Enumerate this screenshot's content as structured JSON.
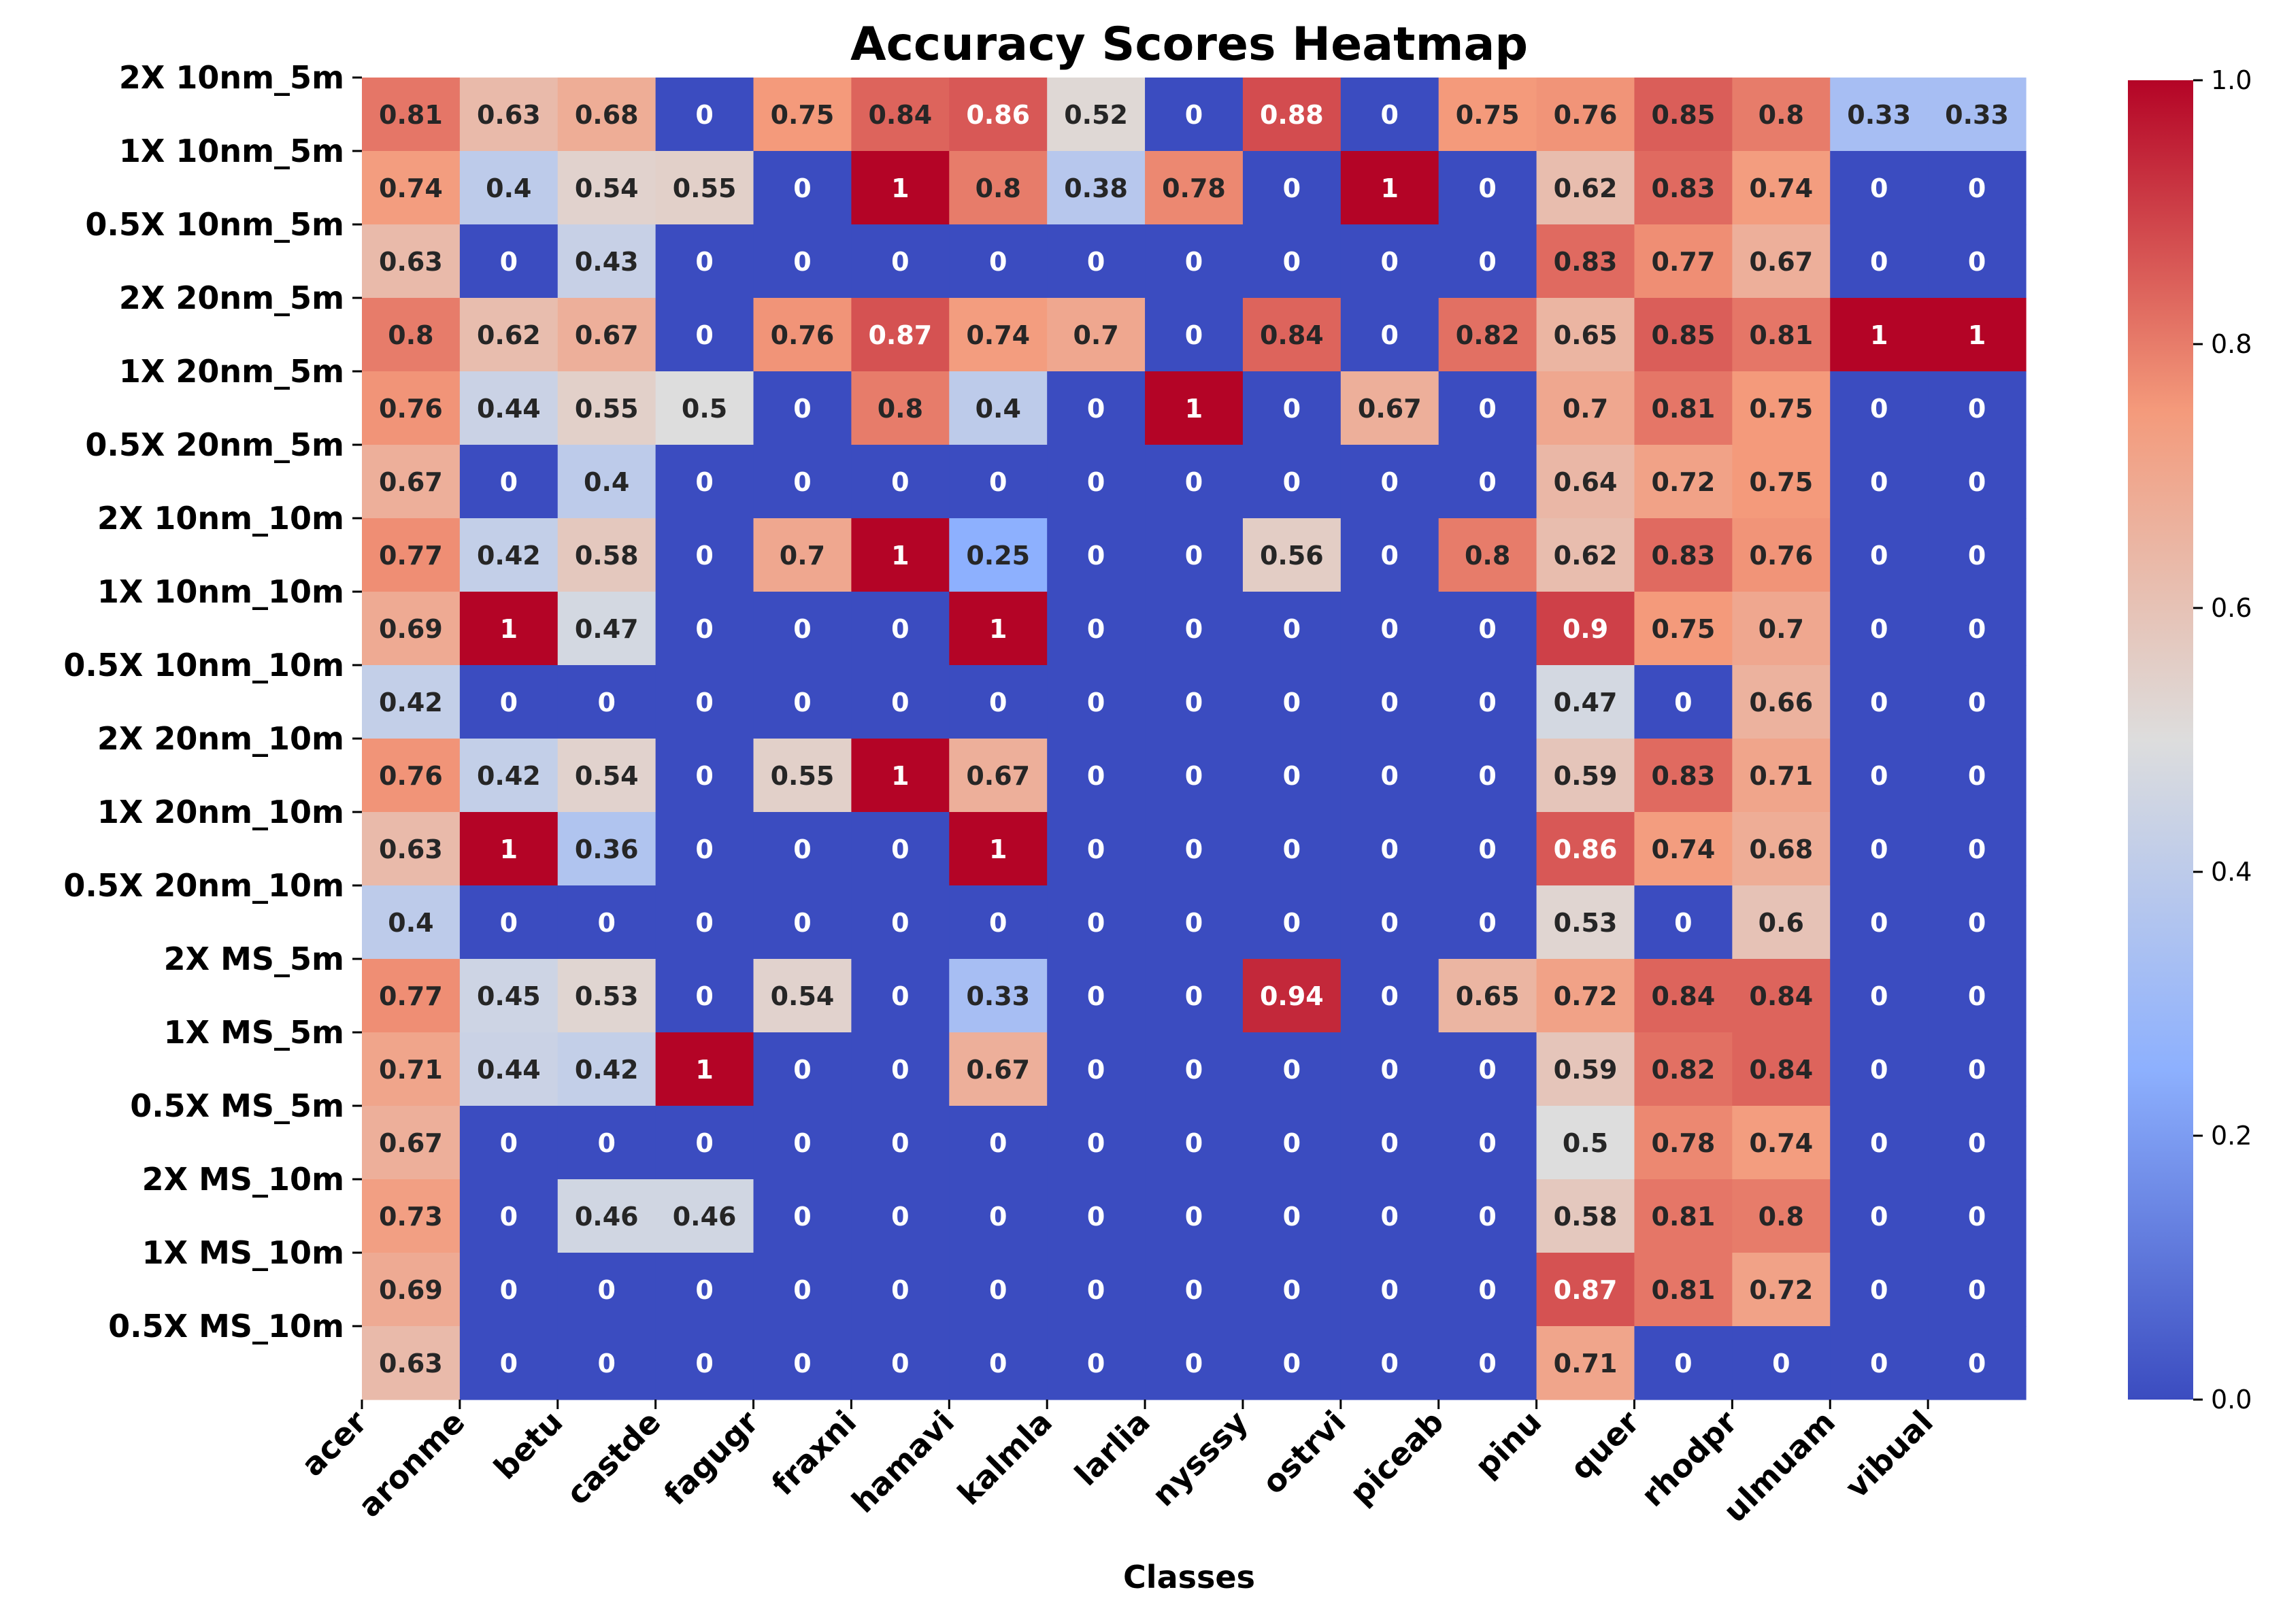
{
  "chart_data": {
    "type": "heatmap",
    "title": "Accuracy Scores Heatmap",
    "xlabel": "Classes",
    "ylabel": "",
    "colormap": "coolwarm",
    "colormap_stops": [
      "#3b4cc0",
      "#8db0fe",
      "#dddddd",
      "#f49a7b",
      "#b40426"
    ],
    "vmin": 0.0,
    "vmax": 1.0,
    "colorbar_ticks": [
      "0.0",
      "0.2",
      "0.4",
      "0.6",
      "0.8",
      "1.0"
    ],
    "columns": [
      "acer",
      "aronme",
      "betu",
      "castde",
      "fagugr",
      "fraxni",
      "hamavi",
      "kalmla",
      "larlia",
      "nysssy",
      "ostrvi",
      "piceab",
      "pinu",
      "quer",
      "rhodpr",
      "ulmuam",
      "vibual"
    ],
    "rows": [
      "2X 10nm_5m",
      "1X 10nm_5m",
      "0.5X 10nm_5m",
      "2X 20nm_5m",
      "1X 20nm_5m",
      "0.5X 20nm_5m",
      "2X 10nm_10m",
      "1X 10nm_10m",
      "0.5X 10nm_10m",
      "2X 20nm_10m",
      "1X 20nm_10m",
      "0.5X 20nm_10m",
      "2X MS_5m",
      "1X MS_5m",
      "0.5X MS_5m",
      "2X MS_10m",
      "1X MS_10m",
      "0.5X MS_10m"
    ],
    "values": [
      [
        0.81,
        0.63,
        0.68,
        0,
        0.75,
        0.84,
        0.86,
        0.52,
        0,
        0.88,
        0,
        0.75,
        0.76,
        0.85,
        0.8,
        0.33,
        0.33
      ],
      [
        0.74,
        0.4,
        0.54,
        0.55,
        0,
        1,
        0.8,
        0.38,
        0.78,
        0,
        1,
        0,
        0.62,
        0.83,
        0.74,
        0,
        0
      ],
      [
        0.63,
        0,
        0.43,
        0,
        0,
        0,
        0,
        0,
        0,
        0,
        0,
        0,
        0.83,
        0.77,
        0.67,
        0,
        0
      ],
      [
        0.8,
        0.62,
        0.67,
        0,
        0.76,
        0.87,
        0.74,
        0.7,
        0,
        0.84,
        0,
        0.82,
        0.65,
        0.85,
        0.81,
        1,
        1
      ],
      [
        0.76,
        0.44,
        0.55,
        0.5,
        0,
        0.8,
        0.4,
        0,
        1,
        0,
        0.67,
        0,
        0.7,
        0.81,
        0.75,
        0,
        0
      ],
      [
        0.67,
        0,
        0.4,
        0,
        0,
        0,
        0,
        0,
        0,
        0,
        0,
        0,
        0.64,
        0.72,
        0.75,
        0,
        0
      ],
      [
        0.77,
        0.42,
        0.58,
        0,
        0.7,
        1,
        0.25,
        0,
        0,
        0.56,
        0,
        0.8,
        0.62,
        0.83,
        0.76,
        0,
        0
      ],
      [
        0.69,
        1,
        0.47,
        0,
        0,
        0,
        1,
        0,
        0,
        0,
        0,
        0,
        0.9,
        0.75,
        0.7,
        0,
        0
      ],
      [
        0.42,
        0,
        0,
        0,
        0,
        0,
        0,
        0,
        0,
        0,
        0,
        0,
        0.47,
        0,
        0.66,
        0,
        0
      ],
      [
        0.76,
        0.42,
        0.54,
        0,
        0.55,
        1,
        0.67,
        0,
        0,
        0,
        0,
        0,
        0.59,
        0.83,
        0.71,
        0,
        0
      ],
      [
        0.63,
        1,
        0.36,
        0,
        0,
        0,
        1,
        0,
        0,
        0,
        0,
        0,
        0.86,
        0.74,
        0.68,
        0,
        0
      ],
      [
        0.4,
        0,
        0,
        0,
        0,
        0,
        0,
        0,
        0,
        0,
        0,
        0,
        0.53,
        0,
        0.6,
        0,
        0
      ],
      [
        0.77,
        0.45,
        0.53,
        0,
        0.54,
        0,
        0.33,
        0,
        0,
        0.94,
        0,
        0.65,
        0.72,
        0.84,
        0.84,
        0,
        0
      ],
      [
        0.71,
        0.44,
        0.42,
        1,
        0,
        0,
        0.67,
        0,
        0,
        0,
        0,
        0,
        0.59,
        0.82,
        0.84,
        0,
        0
      ],
      [
        0.67,
        0,
        0,
        0,
        0,
        0,
        0,
        0,
        0,
        0,
        0,
        0,
        0.5,
        0.78,
        0.74,
        0,
        0
      ],
      [
        0.73,
        0,
        0.46,
        0.46,
        0,
        0,
        0,
        0,
        0,
        0,
        0,
        0,
        0.58,
        0.81,
        0.8,
        0,
        0
      ],
      [
        0.69,
        0,
        0,
        0,
        0,
        0,
        0,
        0,
        0,
        0,
        0,
        0,
        0.87,
        0.81,
        0.72,
        0,
        0
      ],
      [
        0.63,
        0,
        0,
        0,
        0,
        0,
        0,
        0,
        0,
        0,
        0,
        0,
        0.71,
        0,
        0,
        0,
        0
      ]
    ]
  }
}
